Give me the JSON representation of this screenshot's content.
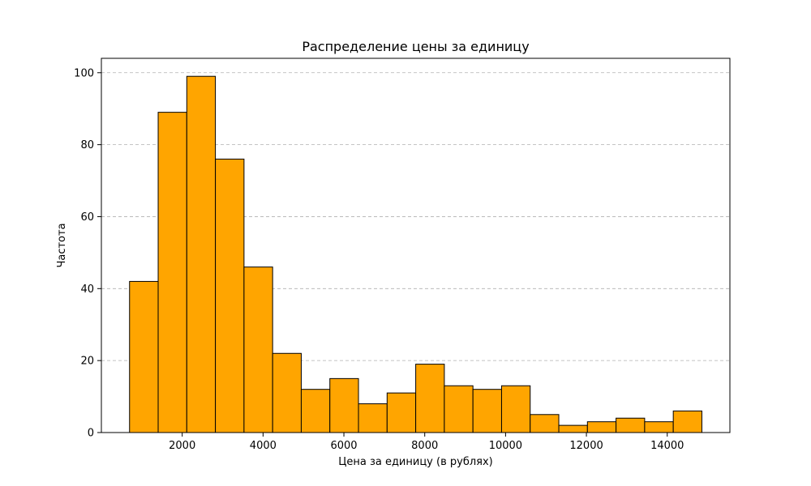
{
  "chart_data": {
    "type": "bar",
    "title": "Распределение цены за единицу",
    "xlabel": "Цена за единицу (в рублях)",
    "ylabel": "Частота",
    "bin_edges": [
      697,
      1405,
      2113,
      2821,
      3529,
      4237,
      4945,
      5653,
      6361,
      7069,
      7777,
      8485,
      9193,
      9901,
      10609,
      11317,
      12025,
      12733,
      13441,
      14149,
      14857
    ],
    "values": [
      42,
      89,
      99,
      76,
      46,
      22,
      12,
      15,
      8,
      11,
      19,
      13,
      12,
      13,
      5,
      2,
      3,
      4,
      3,
      6
    ],
    "xlim": [
      0,
      15550
    ],
    "ylim": [
      0,
      104
    ],
    "xticks": [
      2000,
      4000,
      6000,
      8000,
      10000,
      12000,
      14000
    ],
    "yticks": [
      0,
      20,
      40,
      60,
      80,
      100
    ],
    "bar_color": "#FFA500",
    "edge_color": "#000000",
    "grid": "y-dashed",
    "legend": "none"
  }
}
